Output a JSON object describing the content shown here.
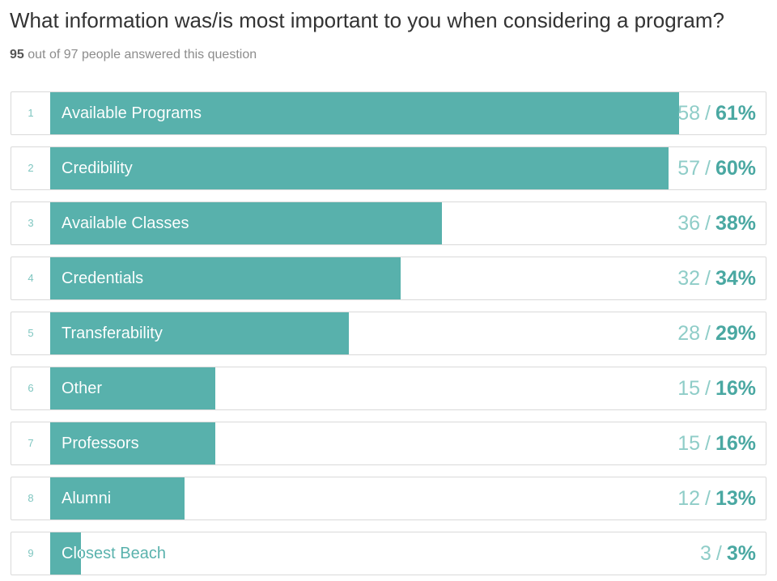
{
  "question": "What information was/is most important to you when considering a program?",
  "answered": {
    "count": "95",
    "text": "out of 97 people answered this question"
  },
  "colors": {
    "bar": "#58b1ac",
    "on_bar_text": "#ffffff",
    "off_bar_text": "#58b1ac"
  },
  "chart_data": {
    "type": "bar",
    "orientation": "horizontal",
    "title": "What information was/is most important to you when considering a program?",
    "xlim": [
      0,
      100
    ],
    "categories": [
      "Available Programs",
      "Credibility",
      "Available Classes",
      "Credentials",
      "Transferability",
      "Other",
      "Professors",
      "Alumni",
      "Closest Beach"
    ],
    "rows": [
      {
        "rank": "1",
        "label": "Available Programs",
        "count": "58",
        "percent": "61%",
        "value": 61
      },
      {
        "rank": "2",
        "label": "Credibility",
        "count": "57",
        "percent": "60%",
        "value": 60
      },
      {
        "rank": "3",
        "label": "Available Classes",
        "count": "36",
        "percent": "38%",
        "value": 38
      },
      {
        "rank": "4",
        "label": "Credentials",
        "count": "32",
        "percent": "34%",
        "value": 34
      },
      {
        "rank": "5",
        "label": "Transferability",
        "count": "28",
        "percent": "29%",
        "value": 29
      },
      {
        "rank": "6",
        "label": "Other",
        "count": "15",
        "percent": "16%",
        "value": 16
      },
      {
        "rank": "7",
        "label": "Professors",
        "count": "15",
        "percent": "16%",
        "value": 16
      },
      {
        "rank": "8",
        "label": "Alumni",
        "count": "12",
        "percent": "13%",
        "value": 13
      },
      {
        "rank": "9",
        "label": "Closest Beach",
        "count": "3",
        "percent": "3%",
        "value": 3
      }
    ],
    "separator": "/"
  }
}
